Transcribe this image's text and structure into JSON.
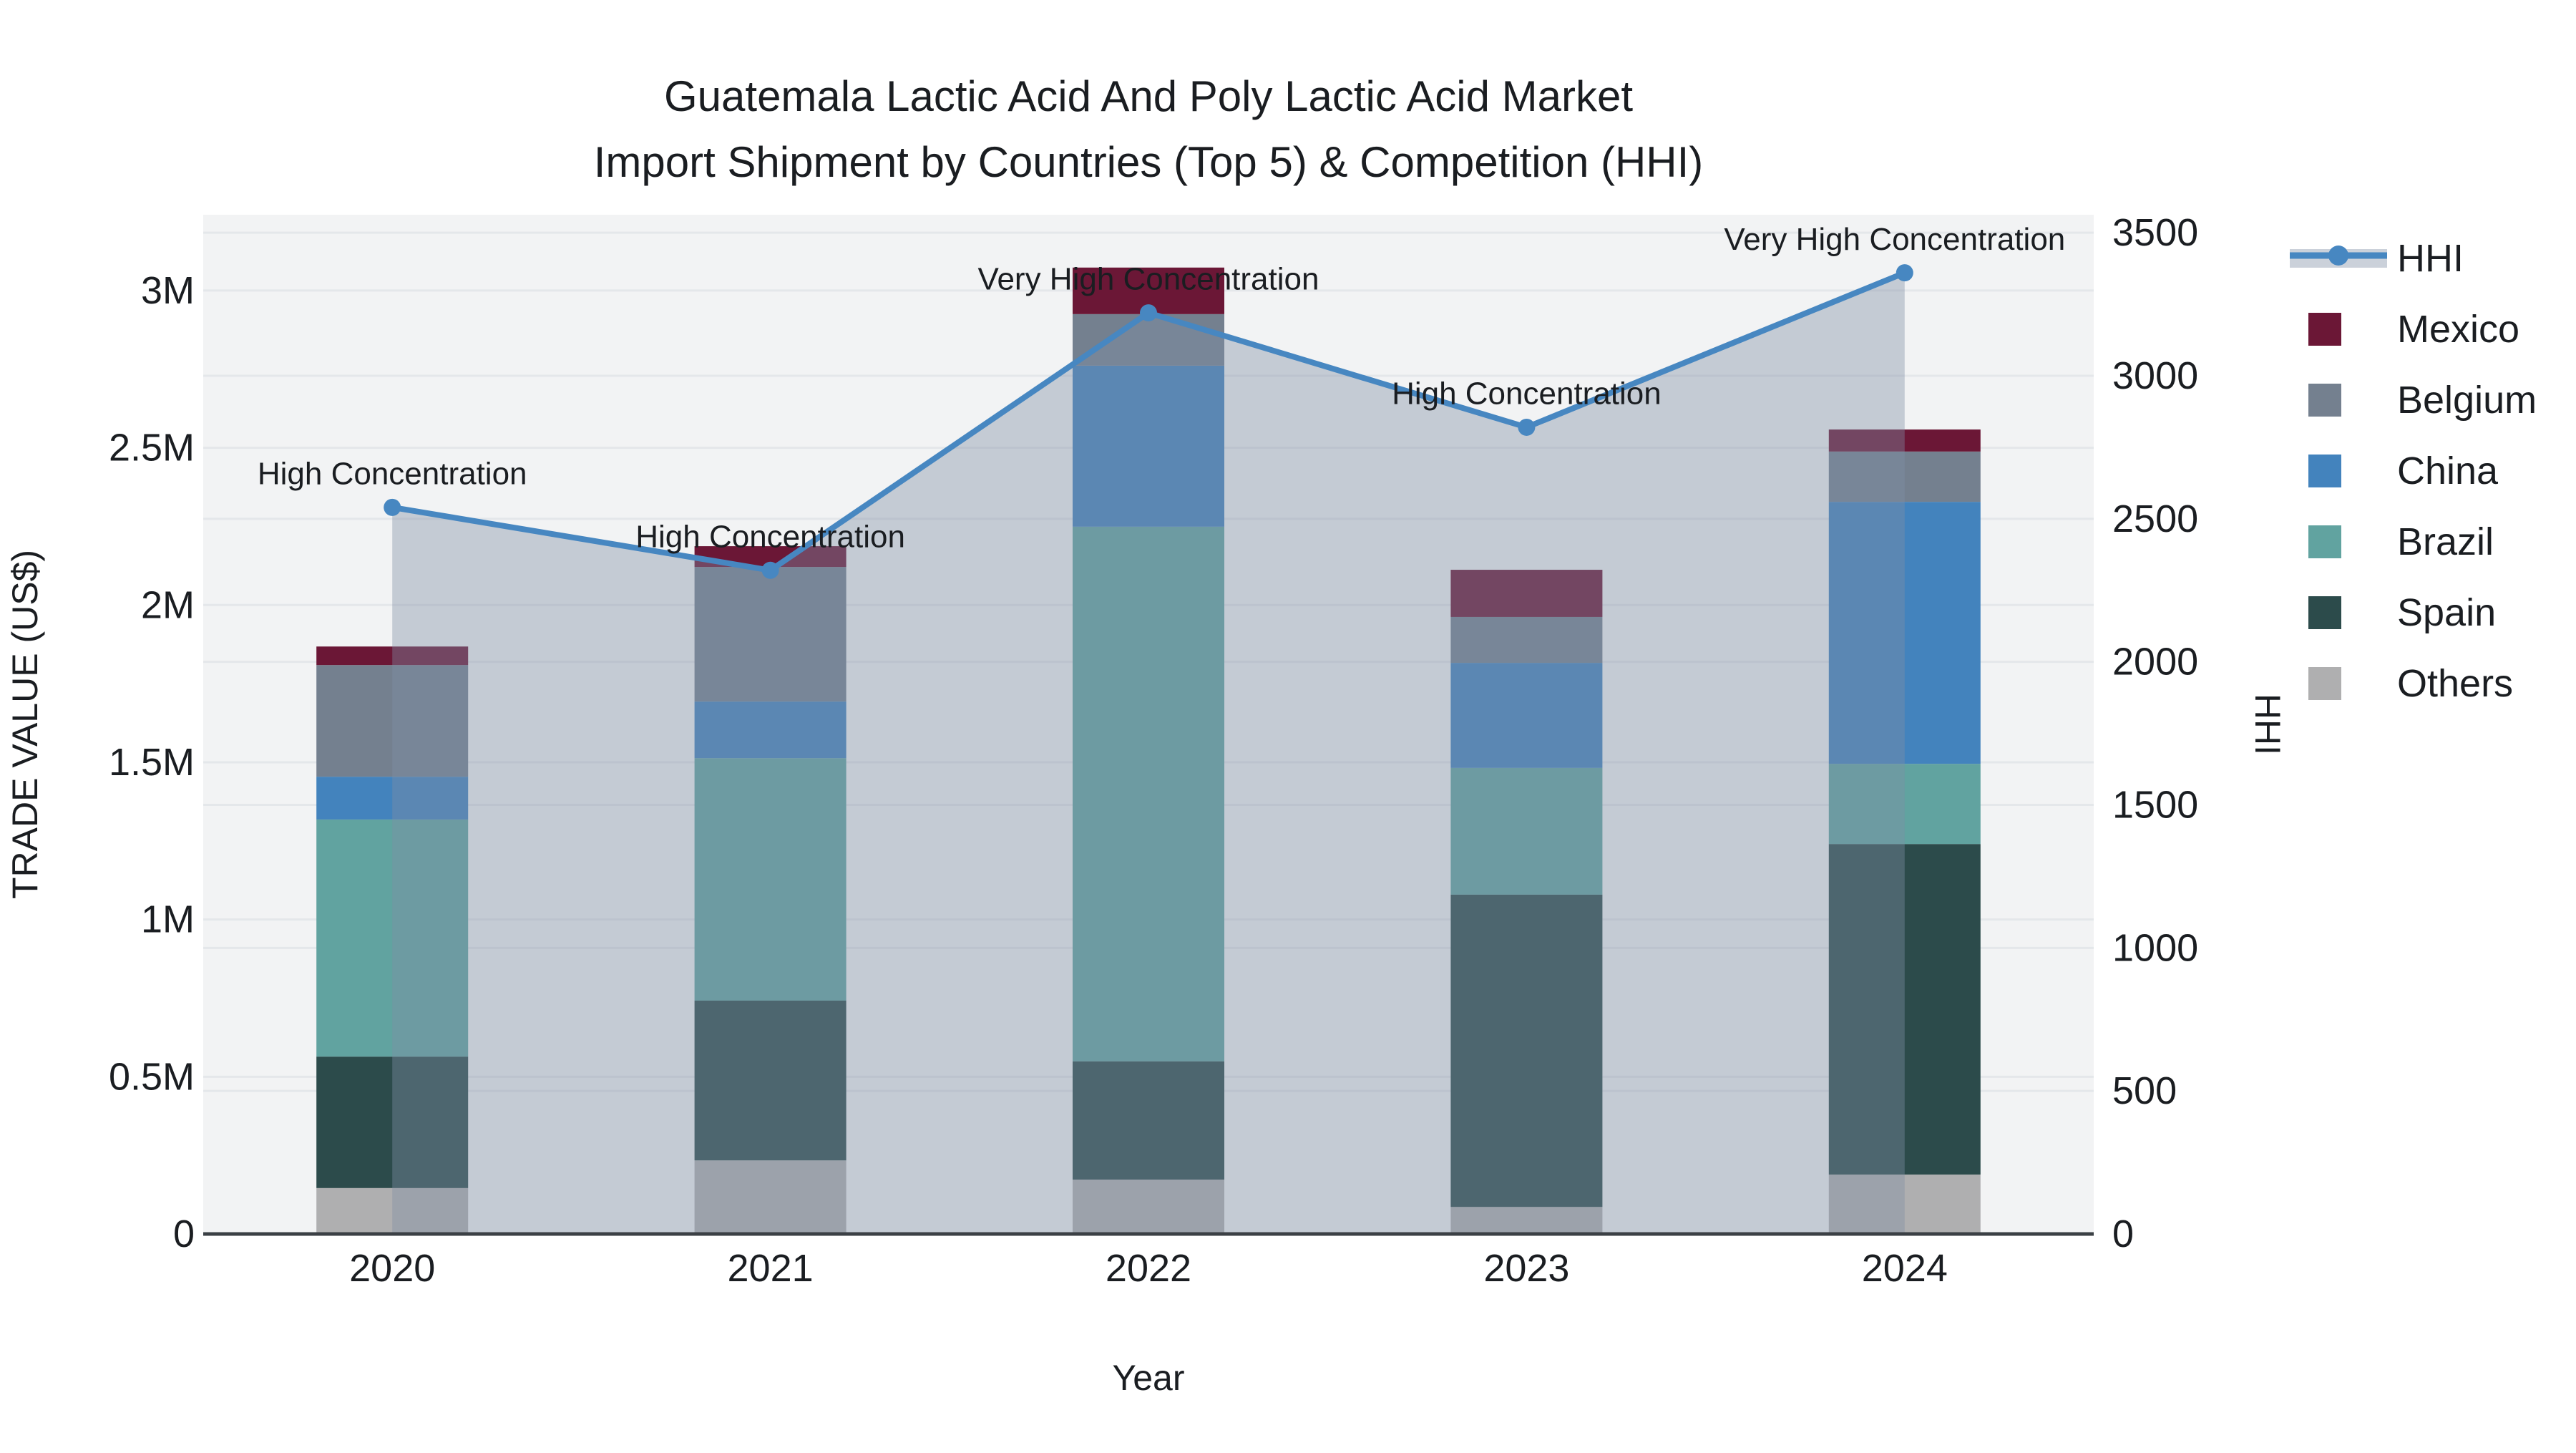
{
  "title": {
    "line1": "Guatemala Lactic Acid And Poly Lactic Acid Market",
    "line2": "Import Shipment by Countries (Top 5) & Competition (HHI)"
  },
  "axes": {
    "left": {
      "title": "TRADE VALUE (US$)",
      "tick_labels": [
        "0",
        "0.5M",
        "1M",
        "1.5M",
        "2M",
        "2.5M",
        "3M"
      ],
      "tick_values": [
        0,
        500000,
        1000000,
        1500000,
        2000000,
        2500000,
        3000000
      ],
      "range": [
        0,
        3241000
      ]
    },
    "right": {
      "title": "HHI",
      "tick_labels": [
        "0",
        "500",
        "1000",
        "1500",
        "2000",
        "2500",
        "3000",
        "3500"
      ],
      "tick_values": [
        0,
        500,
        1000,
        1500,
        2000,
        2500,
        3000,
        3500
      ],
      "range": [
        0,
        3563
      ]
    },
    "x": {
      "title": "Year",
      "tick_labels": [
        "2020",
        "2021",
        "2022",
        "2023",
        "2024"
      ]
    }
  },
  "legend": {
    "items": [
      {
        "label": "HHI",
        "type": "line",
        "color": "#4787C1"
      },
      {
        "label": "Mexico",
        "type": "swatch",
        "color": "#6B1736"
      },
      {
        "label": "Belgium",
        "type": "swatch",
        "color": "#74808F"
      },
      {
        "label": "China",
        "type": "swatch",
        "color": "#4383BD"
      },
      {
        "label": "Brazil",
        "type": "swatch",
        "color": "#61A3A0"
      },
      {
        "label": "Spain",
        "type": "swatch",
        "color": "#2C4B4B"
      },
      {
        "label": "Others",
        "type": "swatch",
        "color": "#AFAFB0"
      }
    ]
  },
  "chart_data": {
    "type": "stacked-bar+line",
    "title": "Guatemala Lactic Acid And Poly Lactic Acid Market Import Shipment by Countries (Top 5) & Competition (HHI)",
    "xlabel": "Year",
    "ylabel_left": "TRADE VALUE (US$)",
    "ylabel_right": "HHI",
    "categories": [
      "2020",
      "2021",
      "2022",
      "2023",
      "2024"
    ],
    "bar_series": [
      {
        "name": "Others",
        "color": "#AFAFB0",
        "values": [
          146000,
          234000,
          173000,
          86000,
          189000
        ]
      },
      {
        "name": "Spain",
        "color": "#2C4B4B",
        "values": [
          418000,
          508000,
          376000,
          993000,
          1051000
        ]
      },
      {
        "name": "Brazil",
        "color": "#61A3A0",
        "values": [
          754000,
          771000,
          1700000,
          403000,
          255000
        ]
      },
      {
        "name": "China",
        "color": "#4383BD",
        "values": [
          136000,
          180000,
          512000,
          334000,
          833000
        ]
      },
      {
        "name": "Belgium",
        "color": "#74808F",
        "values": [
          355000,
          428000,
          164000,
          146000,
          160000
        ]
      },
      {
        "name": "Mexico",
        "color": "#6B1736",
        "values": [
          59000,
          66000,
          148000,
          150000,
          70000
        ]
      }
    ],
    "bar_totals": [
      1868000,
      2187000,
      3073000,
      2112000,
      2558000
    ],
    "line_series": {
      "name": "HHI",
      "axis": "right",
      "color": "#4787C1",
      "area_fill": "rgba(128,142,164,0.40)",
      "values": [
        2540,
        2320,
        3220,
        2820,
        3360
      ]
    },
    "annotations": [
      "High Concentration",
      "High Concentration",
      "Very High Concentration",
      "High Concentration",
      "Very High Concentration"
    ],
    "ylim_left": [
      0,
      3241000
    ],
    "ylim_right": [
      0,
      3563
    ],
    "grid": true,
    "legend_position": "right",
    "plot_background": "#F2F3F4",
    "grid_color": "#E4E7EA",
    "axis_line_color": "#3B4045"
  }
}
